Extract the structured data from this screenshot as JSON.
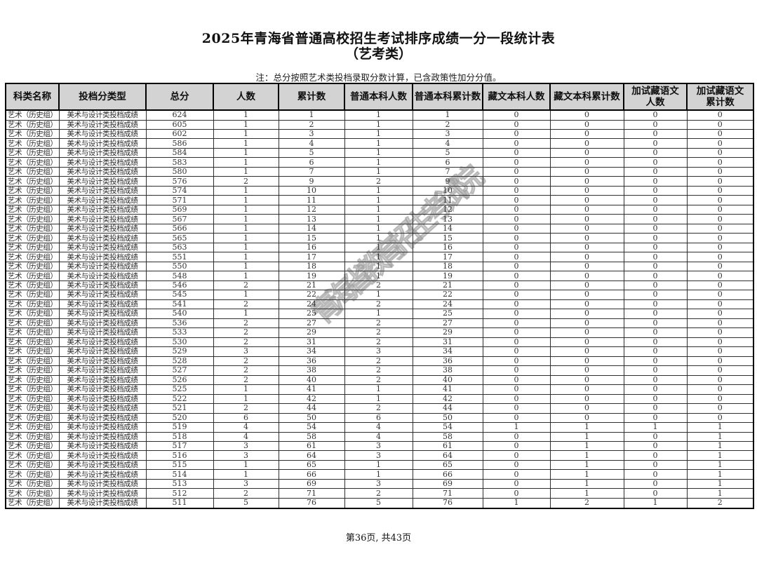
{
  "title": {
    "line1": "2025年青海省普通高校招生考试排序成绩一分一段统计表",
    "line2": "（艺考类）"
  },
  "note": "注：总分按照艺术类投档录取分数计算，已含政策性加分分值。",
  "watermark": "青海省教育招生考试院",
  "footer": "第36页, 共43页",
  "colors": {
    "header_bg": "#d3d3d3",
    "border": "#000000",
    "watermark_gray": "#bfbfbf"
  },
  "table": {
    "headers": [
      "科类名称",
      "投档分类型",
      "总分",
      "人数",
      "累计数",
      "普通本科人数",
      "普通本科累计数",
      "藏文本科人数",
      "藏文本科累计数",
      "加试藏语文\n人数",
      "加试藏语文\n累计数"
    ],
    "category": "艺术（历史组）",
    "score_type": "美术与设计类投档成绩",
    "rows": [
      [
        624,
        1,
        1,
        1,
        1,
        0,
        0,
        0,
        0
      ],
      [
        605,
        1,
        2,
        1,
        2,
        0,
        0,
        0,
        0
      ],
      [
        602,
        1,
        3,
        1,
        3,
        0,
        0,
        0,
        0
      ],
      [
        586,
        1,
        4,
        1,
        4,
        0,
        0,
        0,
        0
      ],
      [
        584,
        1,
        5,
        1,
        5,
        0,
        0,
        0,
        0
      ],
      [
        583,
        1,
        6,
        1,
        6,
        0,
        0,
        0,
        0
      ],
      [
        580,
        1,
        7,
        1,
        7,
        0,
        0,
        0,
        0
      ],
      [
        576,
        2,
        9,
        2,
        9,
        0,
        0,
        0,
        0
      ],
      [
        574,
        1,
        10,
        1,
        10,
        0,
        0,
        0,
        0
      ],
      [
        571,
        1,
        11,
        1,
        11,
        0,
        0,
        0,
        0
      ],
      [
        569,
        1,
        12,
        1,
        12,
        0,
        0,
        0,
        0
      ],
      [
        567,
        1,
        13,
        1,
        13,
        0,
        0,
        0,
        0
      ],
      [
        566,
        1,
        14,
        1,
        14,
        0,
        0,
        0,
        0
      ],
      [
        565,
        1,
        15,
        1,
        15,
        0,
        0,
        0,
        0
      ],
      [
        563,
        1,
        16,
        1,
        16,
        0,
        0,
        0,
        0
      ],
      [
        551,
        1,
        17,
        1,
        17,
        0,
        0,
        0,
        0
      ],
      [
        550,
        1,
        18,
        1,
        18,
        0,
        0,
        0,
        0
      ],
      [
        548,
        1,
        19,
        1,
        19,
        0,
        0,
        0,
        0
      ],
      [
        546,
        2,
        21,
        2,
        21,
        0,
        0,
        0,
        0
      ],
      [
        545,
        1,
        22,
        1,
        22,
        0,
        0,
        0,
        0
      ],
      [
        541,
        2,
        24,
        2,
        24,
        0,
        0,
        0,
        0
      ],
      [
        540,
        1,
        25,
        1,
        25,
        0,
        0,
        0,
        0
      ],
      [
        536,
        2,
        27,
        2,
        27,
        0,
        0,
        0,
        0
      ],
      [
        533,
        2,
        29,
        2,
        29,
        0,
        0,
        0,
        0
      ],
      [
        530,
        2,
        31,
        2,
        31,
        0,
        0,
        0,
        0
      ],
      [
        529,
        3,
        34,
        3,
        34,
        0,
        0,
        0,
        0
      ],
      [
        528,
        2,
        36,
        2,
        36,
        0,
        0,
        0,
        0
      ],
      [
        527,
        2,
        38,
        2,
        38,
        0,
        0,
        0,
        0
      ],
      [
        526,
        2,
        40,
        2,
        40,
        0,
        0,
        0,
        0
      ],
      [
        525,
        1,
        41,
        1,
        41,
        0,
        0,
        0,
        0
      ],
      [
        522,
        1,
        42,
        1,
        42,
        0,
        0,
        0,
        0
      ],
      [
        521,
        2,
        44,
        2,
        44,
        0,
        0,
        0,
        0
      ],
      [
        520,
        6,
        50,
        6,
        50,
        0,
        0,
        0,
        0
      ],
      [
        519,
        4,
        54,
        4,
        54,
        1,
        1,
        1,
        1
      ],
      [
        518,
        4,
        58,
        4,
        58,
        0,
        1,
        0,
        1
      ],
      [
        517,
        3,
        61,
        3,
        61,
        0,
        1,
        0,
        1
      ],
      [
        516,
        3,
        64,
        3,
        64,
        0,
        1,
        0,
        1
      ],
      [
        515,
        1,
        65,
        1,
        65,
        0,
        1,
        0,
        1
      ],
      [
        514,
        1,
        66,
        1,
        66,
        0,
        1,
        0,
        1
      ],
      [
        513,
        3,
        69,
        3,
        69,
        0,
        1,
        0,
        1
      ],
      [
        512,
        2,
        71,
        2,
        71,
        0,
        1,
        0,
        1
      ],
      [
        511,
        5,
        76,
        5,
        76,
        1,
        2,
        1,
        2
      ]
    ]
  }
}
